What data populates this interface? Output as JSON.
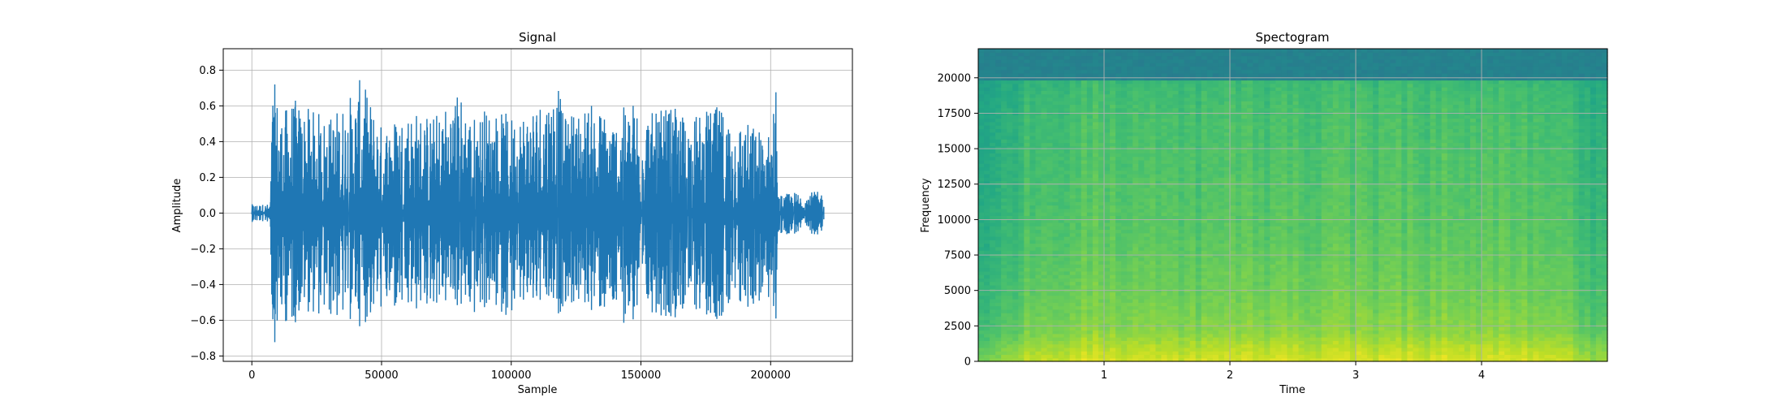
{
  "chart_data": [
    {
      "type": "line",
      "title": "Signal",
      "xlabel": "Sample",
      "ylabel": "Amplitude",
      "xlim": [
        -11025,
        231525
      ],
      "ylim": [
        -0.83,
        0.92
      ],
      "grid": true,
      "line_color": "#1f77b4",
      "x_ticks": [
        0,
        50000,
        100000,
        150000,
        200000
      ],
      "x_tick_labels": [
        "0",
        "50000",
        "100000",
        "150000",
        "200000"
      ],
      "y_ticks": [
        -0.8,
        -0.6,
        -0.4,
        -0.2,
        0.0,
        0.2,
        0.4,
        0.6,
        0.8
      ],
      "y_tick_labels": [
        "−0.8",
        "−0.6",
        "−0.4",
        "−0.2",
        "0.0",
        "0.2",
        "0.4",
        "0.6",
        "0.8"
      ],
      "envelope": {
        "x": [
          0,
          7000,
          7500,
          8000,
          12000,
          15000,
          20000,
          30000,
          40000,
          42000,
          50000,
          60000,
          70000,
          80000,
          85000,
          90000,
          100000,
          110000,
          118000,
          120000,
          130000,
          140000,
          150000,
          155000,
          160000,
          170000,
          180000,
          186000,
          190000,
          200000,
          202000,
          202500,
          203000,
          210000,
          220000
        ],
        "max": [
          0.05,
          0.05,
          0.3,
          0.77,
          0.55,
          0.66,
          0.6,
          0.55,
          0.7,
          0.76,
          0.5,
          0.6,
          0.55,
          0.7,
          0.55,
          0.6,
          0.55,
          0.65,
          0.74,
          0.55,
          0.62,
          0.55,
          0.68,
          0.55,
          0.6,
          0.55,
          0.6,
          0.55,
          0.52,
          0.45,
          0.84,
          0.2,
          0.1,
          0.12,
          0.12
        ],
        "min": [
          -0.05,
          -0.05,
          -0.4,
          -0.76,
          -0.6,
          -0.66,
          -0.55,
          -0.6,
          -0.62,
          -0.64,
          -0.55,
          -0.6,
          -0.52,
          -0.55,
          -0.6,
          -0.55,
          -0.58,
          -0.55,
          -0.6,
          -0.52,
          -0.55,
          -0.6,
          -0.65,
          -0.55,
          -0.6,
          -0.55,
          -0.6,
          -0.62,
          -0.55,
          -0.5,
          -0.73,
          -0.2,
          -0.12,
          -0.12,
          -0.12
        ]
      }
    },
    {
      "type": "heatmap",
      "title": "Spectogram",
      "xlabel": "Time",
      "ylabel": "Frequency",
      "xlim": [
        0.0,
        5.0
      ],
      "ylim": [
        0,
        22050
      ],
      "grid": true,
      "colormap": "viridis",
      "x_ticks": [
        1,
        2,
        3,
        4
      ],
      "x_tick_labels": [
        "1",
        "2",
        "3",
        "4"
      ],
      "y_ticks": [
        0,
        2500,
        5000,
        7500,
        10000,
        12500,
        15000,
        17500,
        20000
      ],
      "y_tick_labels": [
        "0",
        "2500",
        "5000",
        "7500",
        "10000",
        "12500",
        "15000",
        "17500",
        "20000"
      ],
      "time_bins": [
        0.1,
        0.3,
        0.5,
        0.7,
        0.9,
        1.1,
        1.3,
        1.5,
        1.7,
        1.9,
        2.1,
        2.3,
        2.5,
        2.7,
        2.9,
        3.1,
        3.3,
        3.5,
        3.7,
        3.9,
        4.1,
        4.3,
        4.5,
        4.7,
        4.9
      ],
      "freq_bins": [
        0,
        1000,
        2000,
        3000,
        4000,
        5000,
        6000,
        7000,
        8000,
        9000,
        10000,
        11000,
        12000,
        13000,
        14000,
        15000,
        16000,
        17000,
        18000,
        19000,
        20000,
        21000
      ],
      "level_profile": {
        "note": "relative level 0..1 (viridis), see script for grid",
        "time_factor": [
          0.55,
          0.62,
          0.85,
          0.85,
          0.9,
          0.9,
          0.9,
          0.9,
          0.88,
          0.88,
          0.9,
          0.9,
          0.9,
          0.9,
          0.9,
          0.9,
          0.9,
          0.9,
          0.9,
          0.9,
          0.9,
          0.9,
          0.9,
          0.7,
          0.65
        ],
        "freq_base": [
          0.98,
          0.92,
          0.86,
          0.84,
          0.82,
          0.81,
          0.8,
          0.79,
          0.78,
          0.77,
          0.77,
          0.76,
          0.76,
          0.75,
          0.75,
          0.74,
          0.74,
          0.73,
          0.72,
          0.7,
          0.45,
          0.42
        ]
      }
    }
  ]
}
